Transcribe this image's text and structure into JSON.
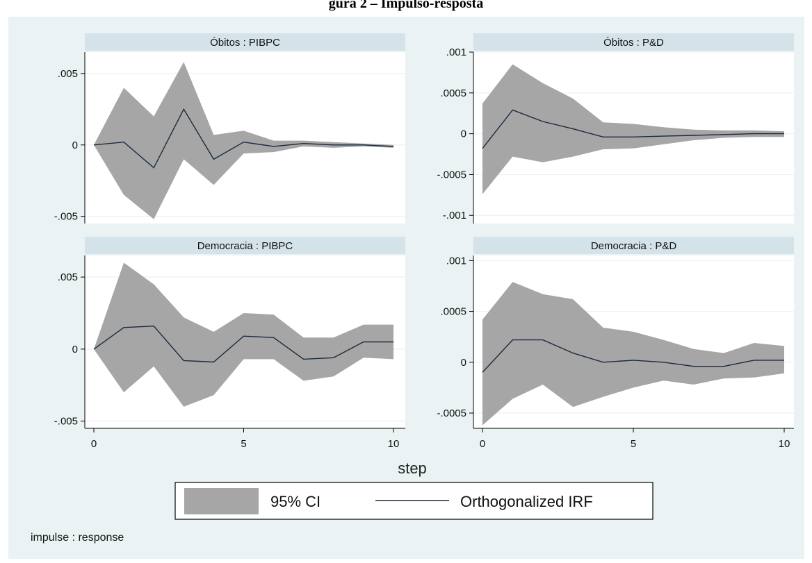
{
  "caption_fragment": "gura 2 – Impulso-resposta",
  "colors": {
    "background": "#eaf2f3",
    "plot_area": "#ffffff",
    "panel_header": "#d4e2e9",
    "ci_fill": "#a6a6a6",
    "irf_line": "#1a2a3c",
    "grid": "#eaf2f3"
  },
  "x_axis_title": "step",
  "legend": {
    "ci_label": "95% CI",
    "irf_label": "Orthogonalized IRF"
  },
  "note": "impulse : response",
  "chart_data": [
    {
      "type": "area",
      "title": "Óbitos : PIBPC",
      "x": [
        0,
        1,
        2,
        3,
        4,
        5,
        6,
        7,
        8,
        9,
        10
      ],
      "irf": [
        0,
        0.0002,
        -0.0016,
        0.0025,
        -0.001,
        0.0002,
        -0.0001,
        0.0001,
        0,
        0,
        -0.0001
      ],
      "ci_upper": [
        0,
        0.004,
        0.002,
        0.0058,
        0.0007,
        0.001,
        0.0003,
        0.0003,
        0.0002,
        0.0001,
        0
      ],
      "ci_lower": [
        0,
        -0.0035,
        -0.0052,
        -0.001,
        -0.0028,
        -0.0006,
        -0.0005,
        -0.0001,
        -0.0002,
        -0.0001,
        -0.0002
      ],
      "yticks": [
        ".005",
        "0",
        "-.005"
      ],
      "ytick_values": [
        0.005,
        0,
        -0.005
      ],
      "ylim": [
        -0.0055,
        0.0065
      ],
      "xlim": [
        0,
        10
      ],
      "show_xticks": false
    },
    {
      "type": "area",
      "title": "Óbitos : P&D",
      "x": [
        0,
        1,
        2,
        3,
        4,
        5,
        6,
        7,
        8,
        9,
        10
      ],
      "irf": [
        -0.00018,
        0.00029,
        0.00015,
        6e-05,
        -4e-05,
        -4e-05,
        -3e-05,
        -2e-05,
        -1e-05,
        0,
        0
      ],
      "ci_upper": [
        0.00037,
        0.00085,
        0.00062,
        0.00043,
        0.00014,
        0.00012,
        8e-05,
        5e-05,
        4e-05,
        4e-05,
        3e-05
      ],
      "ci_lower": [
        -0.00074,
        -0.00028,
        -0.00035,
        -0.00028,
        -0.00019,
        -0.00018,
        -0.00013,
        -8e-05,
        -5e-05,
        -4e-05,
        -4e-05
      ],
      "yticks": [
        ".001",
        ".0005",
        "0",
        "-.0005",
        "-.001"
      ],
      "ytick_values": [
        0.001,
        0.0005,
        0,
        -0.0005,
        -0.001
      ],
      "ylim": [
        -0.0011,
        0.001
      ],
      "xlim": [
        0,
        10
      ],
      "show_xticks": false
    },
    {
      "type": "area",
      "title": "Democracia : PIBPC",
      "x": [
        0,
        1,
        2,
        3,
        4,
        5,
        6,
        7,
        8,
        9,
        10
      ],
      "irf": [
        0,
        0.0015,
        0.0016,
        -0.0008,
        -0.0009,
        0.0009,
        0.0008,
        -0.0007,
        -0.0006,
        0.0005,
        0.0005
      ],
      "ci_upper": [
        0,
        0.006,
        0.0045,
        0.0022,
        0.0012,
        0.0025,
        0.0024,
        0.0008,
        0.0008,
        0.0017,
        0.0017
      ],
      "ci_lower": [
        0,
        -0.003,
        -0.0012,
        -0.004,
        -0.0032,
        -0.0007,
        -0.0007,
        -0.0022,
        -0.0019,
        -0.0006,
        -0.0007
      ],
      "yticks": [
        ".005",
        "0",
        "-.005"
      ],
      "ytick_values": [
        0.005,
        0,
        -0.005
      ],
      "ylim": [
        -0.0055,
        0.0065
      ],
      "xlim": [
        0,
        10
      ],
      "xticks": [
        "0",
        "5",
        "10"
      ],
      "xtick_values": [
        0,
        5,
        10
      ],
      "show_xticks": true
    },
    {
      "type": "area",
      "title": "Democracia : P&D",
      "x": [
        0,
        1,
        2,
        3,
        4,
        5,
        6,
        7,
        8,
        9,
        10
      ],
      "irf": [
        -0.0001,
        0.00022,
        0.00022,
        9e-05,
        0,
        2e-05,
        0,
        -4e-05,
        -4e-05,
        2e-05,
        2e-05
      ],
      "ci_upper": [
        0.00042,
        0.00079,
        0.00067,
        0.00062,
        0.00034,
        0.0003,
        0.00022,
        0.00013,
        9e-05,
        0.00019,
        0.00016
      ],
      "ci_lower": [
        -0.00062,
        -0.00036,
        -0.00022,
        -0.00044,
        -0.00034,
        -0.00025,
        -0.00018,
        -0.00022,
        -0.00016,
        -0.00015,
        -0.00011
      ],
      "yticks": [
        ".001",
        ".0005",
        "0",
        "-.0005"
      ],
      "ytick_values": [
        0.001,
        0.0005,
        0,
        -0.0005
      ],
      "ylim": [
        -0.00065,
        0.00105
      ],
      "xlim": [
        0,
        10
      ],
      "xticks": [
        "0",
        "5",
        "10"
      ],
      "xtick_values": [
        0,
        5,
        10
      ],
      "show_xticks": true
    }
  ]
}
